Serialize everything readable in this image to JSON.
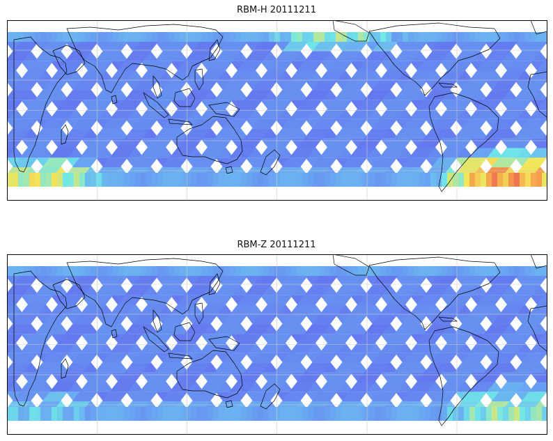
{
  "figure": {
    "panels": [
      {
        "id": "top",
        "title": "RBM-H 20111211",
        "map_projection": "equirectangular",
        "lon_range": [
          20,
          380
        ],
        "lat_range": [
          -60,
          60
        ],
        "grid": true,
        "coastlines": true,
        "colormap": "jet",
        "hotspots": [
          {
            "region": "southern-ocean-south-atlantic",
            "level": 0.85
          },
          {
            "region": "southern-ocean-indian",
            "level": 0.65
          },
          {
            "region": "north-pacific",
            "level": 0.55
          }
        ]
      },
      {
        "id": "bottom",
        "title": "RBM-Z 20111211",
        "map_projection": "equirectangular",
        "lon_range": [
          20,
          380
        ],
        "lat_range": [
          -60,
          60
        ],
        "grid": true,
        "coastlines": true,
        "colormap": "jet",
        "hotspots": [
          {
            "region": "southern-ocean-south-atlantic",
            "level": 0.55
          },
          {
            "region": "southern-ocean-indian",
            "level": 0.4
          }
        ]
      }
    ]
  },
  "colors": {
    "swath_base": "#6268ee",
    "swath_light": "#6aa6f2",
    "cyan": "#6fe8e8",
    "yellow": "#f2e65a",
    "orange": "#f5a04a",
    "red": "#e95858",
    "coast": "#000000",
    "grid": "#cccccc"
  }
}
